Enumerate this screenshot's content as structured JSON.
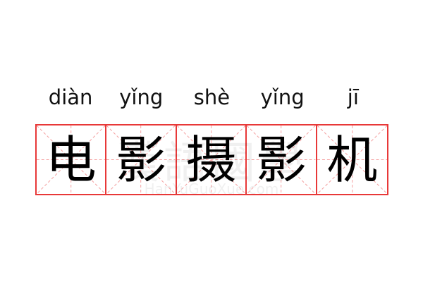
{
  "word": [
    {
      "pinyin": "diàn",
      "char": "电"
    },
    {
      "pinyin": "yǐng",
      "char": "影"
    },
    {
      "pinyin": "shè",
      "char": "摄"
    },
    {
      "pinyin": "yǐng",
      "char": "影"
    },
    {
      "pinyin": "jī",
      "char": "机"
    }
  ],
  "watermark": {
    "chars": "漢語國學",
    "site": "HanYuGuoXue.com"
  },
  "colors": {
    "grid_border": "#e83838",
    "guide_lines": "#f4a0a0",
    "text": "#000000"
  }
}
